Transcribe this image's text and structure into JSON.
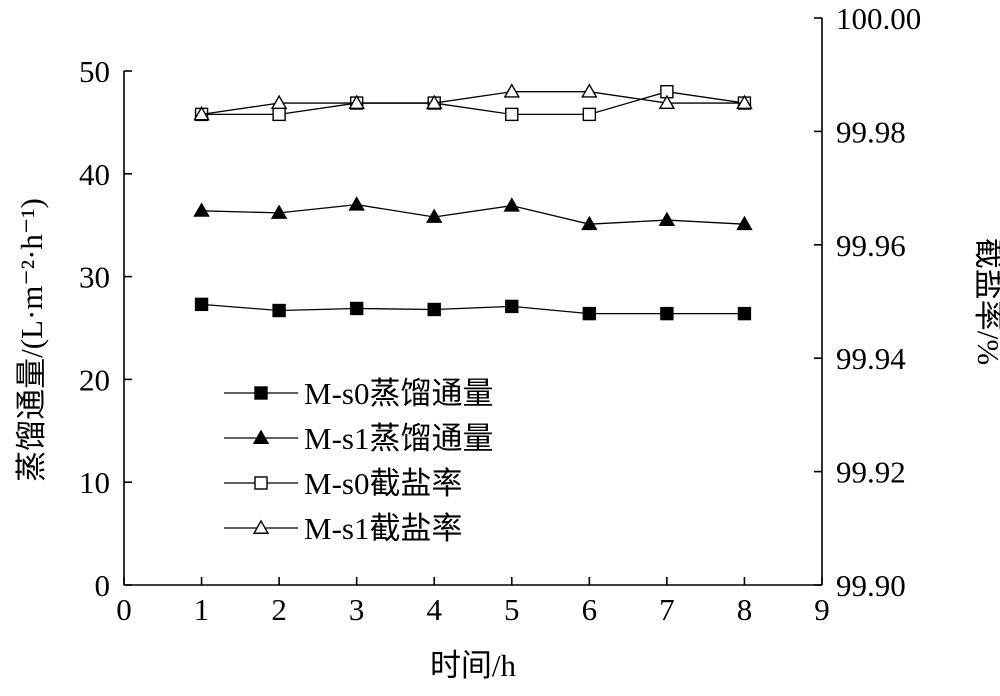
{
  "chart_data": {
    "type": "line",
    "x": [
      1,
      2,
      3,
      4,
      5,
      6,
      7,
      8
    ],
    "xlabel": "时间/h",
    "xlim": [
      0,
      9
    ],
    "xticks": [
      "0",
      "1",
      "2",
      "3",
      "4",
      "5",
      "6",
      "7",
      "8",
      "9"
    ],
    "left_axis": {
      "label": "蒸馏通量/(L·m⁻²·h⁻¹)",
      "ylim": [
        0,
        50
      ],
      "ticks": [
        "0",
        "10",
        "20",
        "30",
        "40",
        "50"
      ]
    },
    "right_axis": {
      "label": "截盐率/%",
      "ylim": [
        99.9,
        100.0
      ],
      "ticks": [
        "99.90",
        "99.92",
        "99.94",
        "99.96",
        "99.98",
        "100.00"
      ]
    },
    "series": [
      {
        "name": "M-s0蒸馏通量",
        "axis": "left",
        "marker": "filled-square",
        "values": [
          27.3,
          26.7,
          26.9,
          26.8,
          27.1,
          26.4,
          26.4,
          26.4
        ]
      },
      {
        "name": "M-s1蒸馏通量",
        "axis": "left",
        "marker": "filled-triangle",
        "values": [
          36.4,
          36.2,
          37.0,
          35.8,
          36.9,
          35.1,
          35.5,
          35.1
        ]
      },
      {
        "name": "M-s0截盐率",
        "axis": "right",
        "marker": "open-square",
        "values": [
          99.983,
          99.983,
          99.985,
          99.985,
          99.983,
          99.983,
          99.987,
          99.985
        ]
      },
      {
        "name": "M-s1截盐率",
        "axis": "right",
        "marker": "open-triangle",
        "values": [
          99.983,
          99.985,
          99.985,
          99.985,
          99.987,
          99.987,
          99.985,
          99.985
        ]
      }
    ],
    "legend_position": "lower-left",
    "grid": false
  }
}
